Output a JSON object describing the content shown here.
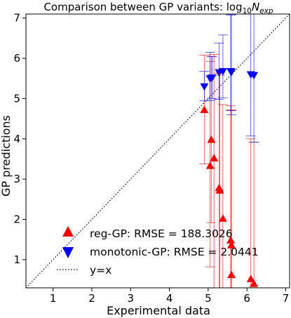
{
  "chart_data": {
    "type": "scatter",
    "title_main": "Comparison between GP variants: log",
    "title_sub": "10",
    "title_italic": "N",
    "title_italic_sub": "exp",
    "xlabel": "Experimental data",
    "ylabel": "GP predictions",
    "xlim": [
      0.3,
      7.1
    ],
    "ylim": [
      0.3,
      7.1
    ],
    "xticks": [
      1,
      2,
      3,
      4,
      5,
      6,
      7
    ],
    "yticks": [
      1,
      2,
      3,
      4,
      5,
      6,
      7
    ],
    "grid": false,
    "legend_position": "bottom-center",
    "series": [
      {
        "name": "reg-GP: RMSE = 188.3026",
        "marker": "triangle-up",
        "color": "#ff0000",
        "points": [
          {
            "x": 4.9,
            "y": 4.72,
            "lo": 3.38,
            "hi": 6.08
          },
          {
            "x": 5.05,
            "y": 3.33,
            "lo": 0.82,
            "hi": 5.92
          },
          {
            "x": 5.08,
            "y": 3.98,
            "lo": 1.92,
            "hi": 6.04
          },
          {
            "x": 5.15,
            "y": 3.52,
            "lo": 0.3,
            "hi": 6.1
          },
          {
            "x": 5.28,
            "y": 2.78,
            "lo": 0.3,
            "hi": 5.63
          },
          {
            "x": 5.3,
            "y": 2.72,
            "lo": 0.3,
            "hi": 5.58
          },
          {
            "x": 5.38,
            "y": 2.02,
            "lo": 0.3,
            "hi": 4.85
          },
          {
            "x": 5.58,
            "y": 1.48,
            "lo": 0.3,
            "hi": 4.82
          },
          {
            "x": 5.6,
            "y": 1.36,
            "lo": 0.3,
            "hi": 4.7
          },
          {
            "x": 5.6,
            "y": 0.62,
            "lo": 0.3,
            "hi": 4.72
          },
          {
            "x": 6.1,
            "y": 0.52,
            "lo": 0.3,
            "hi": 4.0
          },
          {
            "x": 6.18,
            "y": 0.4,
            "lo": 0.3,
            "hi": 3.92
          }
        ]
      },
      {
        "name": "monotonic-GP: RMSE = 2.0441",
        "marker": "triangle-down",
        "color": "#0000ff",
        "points": [
          {
            "x": 4.9,
            "y": 5.3,
            "lo": 4.95,
            "hi": 5.68
          },
          {
            "x": 5.05,
            "y": 5.5,
            "lo": 4.95,
            "hi": 6.15
          },
          {
            "x": 5.1,
            "y": 5.52,
            "lo": 5.0,
            "hi": 6.05
          },
          {
            "x": 5.28,
            "y": 5.65,
            "lo": 4.98,
            "hi": 6.38
          },
          {
            "x": 5.38,
            "y": 5.68,
            "lo": 5.02,
            "hi": 6.58
          },
          {
            "x": 5.58,
            "y": 5.68,
            "lo": 4.7,
            "hi": 7.08
          },
          {
            "x": 5.6,
            "y": 5.66,
            "lo": 4.6,
            "hi": 7.08
          },
          {
            "x": 6.1,
            "y": 5.6,
            "lo": 4.07,
            "hi": 7.1
          },
          {
            "x": 6.18,
            "y": 5.58,
            "lo": 3.92,
            "hi": 7.1
          }
        ]
      }
    ],
    "reference_line": {
      "name": "y=x",
      "style": "dotted",
      "color": "#000000"
    }
  }
}
